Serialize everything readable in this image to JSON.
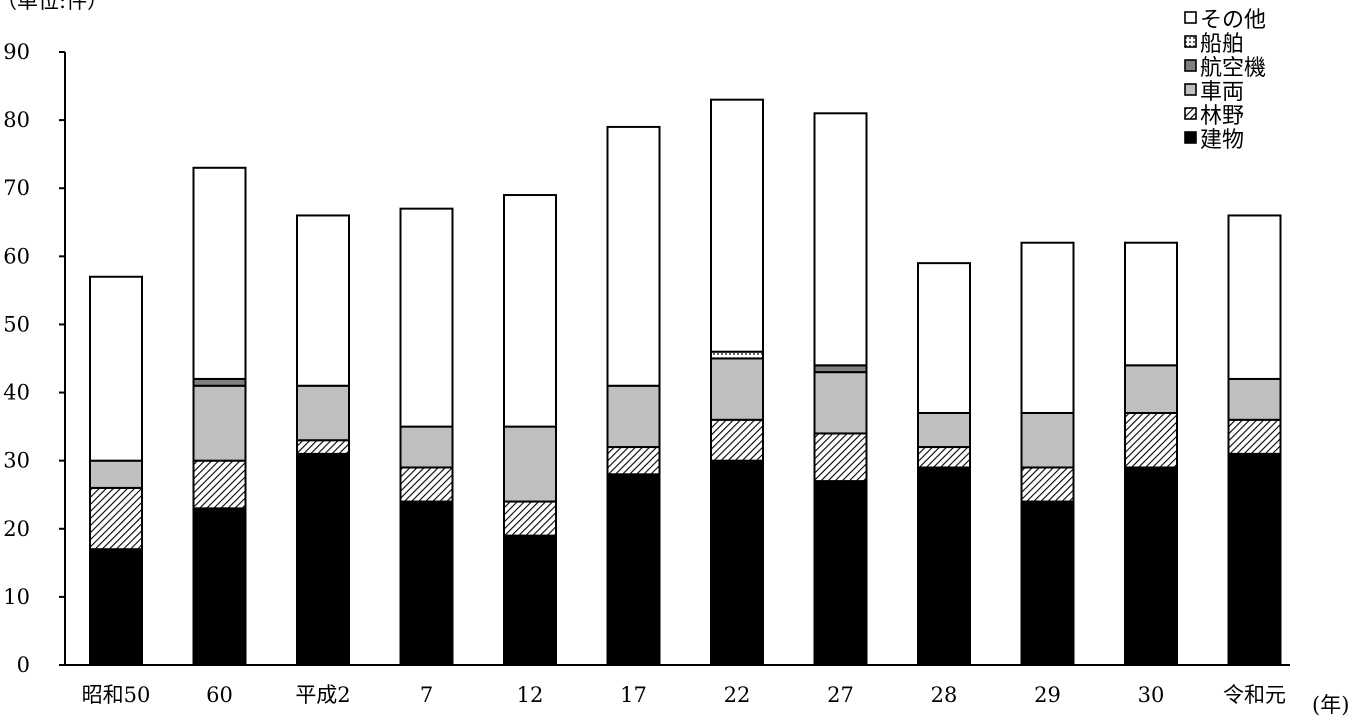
{
  "chart_data": {
    "type": "bar",
    "stacked": true,
    "unit_label": "（単位:件）",
    "x_unit_label": "(年)",
    "categories": [
      "昭和50",
      "60",
      "平成2",
      "7",
      "12",
      "17",
      "22",
      "27",
      "28",
      "29",
      "30",
      "令和元"
    ],
    "yticks": [
      "0",
      "10",
      "20",
      "30",
      "40",
      "50",
      "60",
      "70",
      "80",
      "90"
    ],
    "ylim": [
      0,
      90
    ],
    "grid": false,
    "legend_position": "top-right",
    "series": [
      {
        "name": "建物",
        "fill": "solid",
        "color": "#000000",
        "values": [
          17,
          23,
          31,
          24,
          19,
          28,
          30,
          27,
          29,
          24,
          29,
          31
        ]
      },
      {
        "name": "林野",
        "fill": "hatch",
        "color": "#000000",
        "values": [
          9,
          7,
          2,
          5,
          5,
          4,
          6,
          7,
          3,
          5,
          8,
          5
        ]
      },
      {
        "name": "車両",
        "fill": "solid",
        "color": "#bfbfbf",
        "values": [
          4,
          11,
          8,
          6,
          11,
          9,
          9,
          9,
          5,
          8,
          7,
          6
        ]
      },
      {
        "name": "航空機",
        "fill": "solid",
        "color": "#7f7f7f",
        "values": [
          0,
          1,
          0,
          0,
          0,
          0,
          0,
          1,
          0,
          0,
          0,
          0
        ]
      },
      {
        "name": "船舶",
        "fill": "dots",
        "color": "#ffffff",
        "values": [
          0,
          0,
          0,
          0,
          0,
          0,
          1,
          0,
          0,
          0,
          0,
          0
        ]
      },
      {
        "name": "その他",
        "fill": "solid",
        "color": "#ffffff",
        "values": [
          27,
          31,
          25,
          32,
          34,
          38,
          37,
          37,
          22,
          25,
          18,
          24
        ]
      }
    ],
    "legend_order": [
      "その他",
      "船舶",
      "航空機",
      "車両",
      "林野",
      "建物"
    ]
  }
}
